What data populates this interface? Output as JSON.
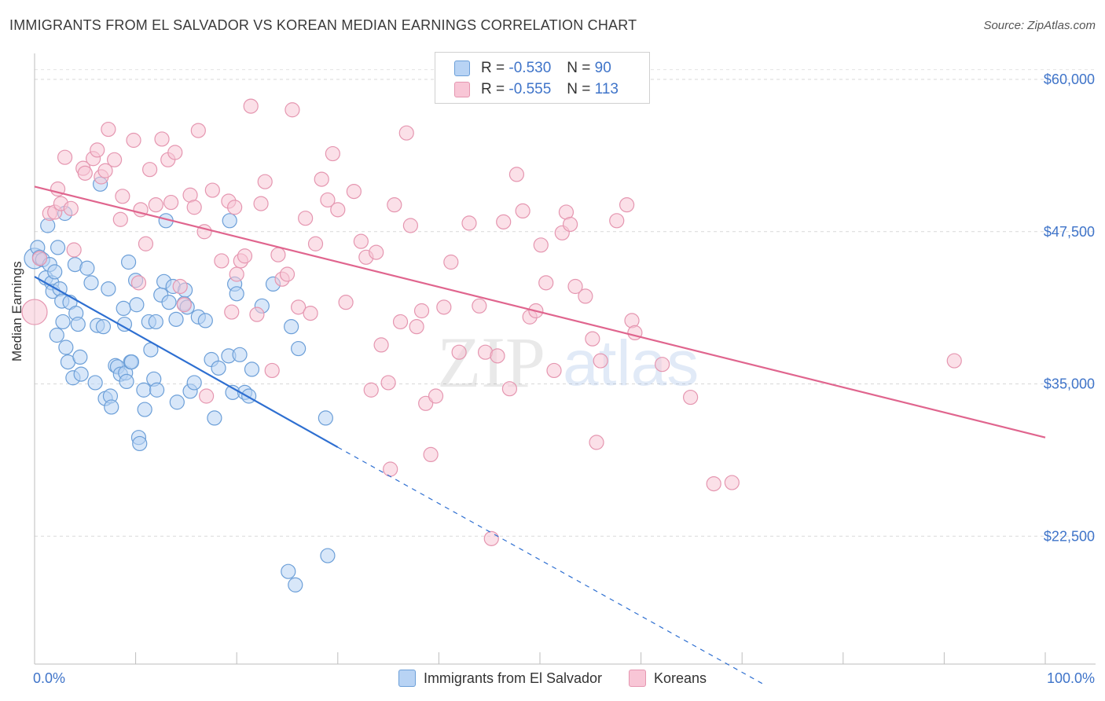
{
  "title": "IMMIGRANTS FROM EL SALVADOR VS KOREAN MEDIAN EARNINGS CORRELATION CHART",
  "source": "Source: ZipAtlas.com",
  "watermark": {
    "zip": "ZIP",
    "atlas": "atlas"
  },
  "stats": [
    {
      "r_label": "R =",
      "r_value": "-0.530",
      "n_label": "N =",
      "n_value": "90",
      "color": "#6c9fd8"
    },
    {
      "r_label": "R =",
      "r_value": "-0.555",
      "n_label": "N =",
      "n_value": "113",
      "color": "#e596b0"
    }
  ],
  "legend": {
    "blue": "Immigrants from El Salvador",
    "pink": "Koreans"
  },
  "chart_data": {
    "type": "scatter",
    "title": "IMMIGRANTS FROM EL SALVADOR VS KOREAN MEDIAN EARNINGS CORRELATION CHART",
    "xlabel": "",
    "ylabel": "Median Earnings",
    "xlim": [
      0,
      100
    ],
    "ylim": [
      12000,
      62000
    ],
    "x_tick_labels": [
      "0.0%",
      "100.0%"
    ],
    "y_ticks": [
      22500,
      35000,
      47500,
      60000
    ],
    "y_tick_labels": [
      "$22,500",
      "$35,000",
      "$47,500",
      "$60,000"
    ],
    "grid": true,
    "legend_position": "bottom",
    "series": [
      {
        "name": "Immigrants from El Salvador",
        "color": "#6c9fd8",
        "fill": "#b8d3f4",
        "trend": {
          "x": [
            0,
            30
          ],
          "y": [
            43800,
            29800
          ],
          "dashed_to": [
            72,
            10400
          ]
        },
        "points": [
          [
            0,
            45300
          ],
          [
            0.3,
            46200
          ],
          [
            0.5,
            45400
          ],
          [
            0.8,
            45200
          ],
          [
            1.1,
            43700
          ],
          [
            1.3,
            48000
          ],
          [
            1.5,
            44800
          ],
          [
            1.7,
            43300
          ],
          [
            1.8,
            42600
          ],
          [
            2.0,
            44200
          ],
          [
            2.2,
            39000
          ],
          [
            2.3,
            46200
          ],
          [
            2.5,
            42800
          ],
          [
            2.7,
            41800
          ],
          [
            2.8,
            40100
          ],
          [
            3.0,
            49000
          ],
          [
            3.1,
            38000
          ],
          [
            3.3,
            36800
          ],
          [
            3.5,
            41700
          ],
          [
            3.8,
            35500
          ],
          [
            4.0,
            44800
          ],
          [
            4.1,
            40800
          ],
          [
            4.3,
            39900
          ],
          [
            4.5,
            37200
          ],
          [
            4.6,
            35800
          ],
          [
            5.2,
            44500
          ],
          [
            5.6,
            43300
          ],
          [
            6.0,
            35100
          ],
          [
            6.2,
            39800
          ],
          [
            6.5,
            51400
          ],
          [
            6.8,
            39700
          ],
          [
            7.0,
            33800
          ],
          [
            7.3,
            42800
          ],
          [
            7.5,
            34000
          ],
          [
            7.6,
            33100
          ],
          [
            8.0,
            36500
          ],
          [
            8.2,
            36400
          ],
          [
            8.5,
            35800
          ],
          [
            8.8,
            41200
          ],
          [
            8.9,
            39900
          ],
          [
            9.0,
            35900
          ],
          [
            9.1,
            35200
          ],
          [
            9.3,
            45000
          ],
          [
            9.5,
            36800
          ],
          [
            9.6,
            36800
          ],
          [
            10.0,
            43500
          ],
          [
            10.1,
            41500
          ],
          [
            10.3,
            30600
          ],
          [
            10.4,
            30100
          ],
          [
            10.8,
            34500
          ],
          [
            10.9,
            32900
          ],
          [
            11.3,
            40100
          ],
          [
            11.5,
            37800
          ],
          [
            11.8,
            35400
          ],
          [
            12.0,
            40100
          ],
          [
            12.1,
            34500
          ],
          [
            12.5,
            42300
          ],
          [
            12.8,
            43400
          ],
          [
            13.0,
            48400
          ],
          [
            13.3,
            41700
          ],
          [
            13.7,
            43000
          ],
          [
            14.0,
            40300
          ],
          [
            14.1,
            33500
          ],
          [
            14.8,
            41600
          ],
          [
            14.9,
            42700
          ],
          [
            15.1,
            41300
          ],
          [
            15.4,
            34400
          ],
          [
            15.8,
            35100
          ],
          [
            16.2,
            40500
          ],
          [
            16.9,
            40200
          ],
          [
            17.5,
            37000
          ],
          [
            17.8,
            32200
          ],
          [
            18.2,
            36300
          ],
          [
            19.2,
            37300
          ],
          [
            19.3,
            48400
          ],
          [
            19.6,
            34300
          ],
          [
            19.8,
            43200
          ],
          [
            20.0,
            42400
          ],
          [
            20.3,
            37400
          ],
          [
            20.8,
            34300
          ],
          [
            21.2,
            34000
          ],
          [
            21.5,
            36200
          ],
          [
            25.1,
            19600
          ],
          [
            25.8,
            18500
          ],
          [
            25.4,
            39700
          ],
          [
            26.1,
            37900
          ],
          [
            28.8,
            32200
          ],
          [
            29.0,
            20900
          ],
          [
            23.6,
            43200
          ],
          [
            22.5,
            41400
          ]
        ]
      },
      {
        "name": "Koreans",
        "color": "#e596b0",
        "fill": "#f8c6d6",
        "trend": {
          "x": [
            0,
            100
          ],
          "y": [
            51200,
            30600
          ]
        },
        "points": [
          [
            0,
            40900
          ],
          [
            0.5,
            45300
          ],
          [
            1.5,
            49000
          ],
          [
            2.0,
            49100
          ],
          [
            2.3,
            51000
          ],
          [
            2.6,
            49800
          ],
          [
            3.0,
            53600
          ],
          [
            3.6,
            49400
          ],
          [
            3.9,
            46000
          ],
          [
            4.8,
            52700
          ],
          [
            5.0,
            52300
          ],
          [
            5.8,
            53500
          ],
          [
            6.2,
            54200
          ],
          [
            6.6,
            52000
          ],
          [
            7.0,
            52500
          ],
          [
            7.3,
            55900
          ],
          [
            7.9,
            53400
          ],
          [
            8.5,
            48500
          ],
          [
            8.7,
            50400
          ],
          [
            9.8,
            55000
          ],
          [
            10.3,
            43300
          ],
          [
            10.5,
            49300
          ],
          [
            11.0,
            46500
          ],
          [
            11.4,
            52600
          ],
          [
            12.0,
            49700
          ],
          [
            12.6,
            55100
          ],
          [
            13.2,
            53400
          ],
          [
            13.5,
            49900
          ],
          [
            13.9,
            54000
          ],
          [
            14.4,
            43000
          ],
          [
            14.8,
            41500
          ],
          [
            15.4,
            50500
          ],
          [
            15.8,
            49500
          ],
          [
            16.2,
            55800
          ],
          [
            16.8,
            47500
          ],
          [
            17.0,
            34000
          ],
          [
            17.6,
            50900
          ],
          [
            18.5,
            45100
          ],
          [
            19.2,
            50000
          ],
          [
            19.5,
            40900
          ],
          [
            19.8,
            49500
          ],
          [
            20.0,
            44000
          ],
          [
            20.4,
            45100
          ],
          [
            20.8,
            45500
          ],
          [
            21.4,
            57800
          ],
          [
            22.0,
            40700
          ],
          [
            22.4,
            49800
          ],
          [
            22.8,
            51600
          ],
          [
            23.5,
            36100
          ],
          [
            24.1,
            45600
          ],
          [
            24.5,
            43600
          ],
          [
            25.0,
            44000
          ],
          [
            25.5,
            57500
          ],
          [
            26.1,
            41300
          ],
          [
            26.8,
            48600
          ],
          [
            27.3,
            40800
          ],
          [
            27.8,
            46500
          ],
          [
            28.4,
            51800
          ],
          [
            29.0,
            50100
          ],
          [
            29.5,
            53900
          ],
          [
            30.0,
            49300
          ],
          [
            30.8,
            41700
          ],
          [
            31.6,
            50800
          ],
          [
            32.3,
            46700
          ],
          [
            32.8,
            45400
          ],
          [
            33.3,
            34500
          ],
          [
            33.8,
            45800
          ],
          [
            34.3,
            38200
          ],
          [
            35.0,
            35100
          ],
          [
            35.6,
            49700
          ],
          [
            36.2,
            40100
          ],
          [
            36.8,
            55600
          ],
          [
            37.2,
            48000
          ],
          [
            37.8,
            39700
          ],
          [
            38.3,
            41000
          ],
          [
            38.7,
            33400
          ],
          [
            39.2,
            29200
          ],
          [
            39.7,
            34000
          ],
          [
            40.5,
            41300
          ],
          [
            41.2,
            45000
          ],
          [
            42.0,
            37600
          ],
          [
            43.0,
            48200
          ],
          [
            44.0,
            41400
          ],
          [
            44.6,
            37600
          ],
          [
            45.2,
            22300
          ],
          [
            45.8,
            37300
          ],
          [
            46.4,
            48300
          ],
          [
            47.0,
            34600
          ],
          [
            47.7,
            52200
          ],
          [
            48.3,
            49200
          ],
          [
            49.0,
            40500
          ],
          [
            49.6,
            41000
          ],
          [
            50.1,
            46400
          ],
          [
            50.6,
            43300
          ],
          [
            51.4,
            36100
          ],
          [
            52.2,
            47400
          ],
          [
            52.6,
            49100
          ],
          [
            53.0,
            48100
          ],
          [
            53.5,
            43000
          ],
          [
            54.5,
            42200
          ],
          [
            55.2,
            38700
          ],
          [
            55.6,
            30200
          ],
          [
            56.0,
            36900
          ],
          [
            57.6,
            48400
          ],
          [
            58.6,
            49700
          ],
          [
            59.1,
            40200
          ],
          [
            59.4,
            39200
          ],
          [
            62.1,
            36600
          ],
          [
            64.9,
            33900
          ],
          [
            67.2,
            26800
          ],
          [
            69.0,
            26900
          ],
          [
            91.0,
            36900
          ],
          [
            35.2,
            28000
          ]
        ]
      }
    ]
  }
}
